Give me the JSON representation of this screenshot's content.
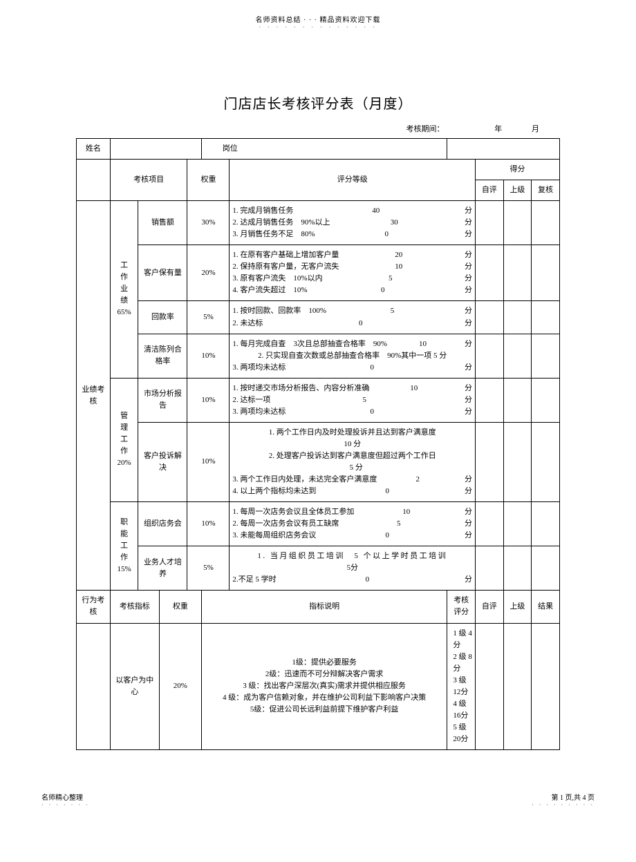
{
  "header": "名师资料总结 · · · 精品资料欢迎下载",
  "title": "门店店长考核评分表（月度）",
  "period_label": "考核期间：",
  "period_year": "年",
  "period_month": "月",
  "name_label": "姓名",
  "position_label": "岗位",
  "col": {
    "item": "考核项目",
    "weight": "权重",
    "grading": "评分等级",
    "score": "得分",
    "self": "自评",
    "superior": "上级",
    "review": "复核"
  },
  "perf_label": "业绩考核",
  "behavior_label": "行为考核",
  "sections": [
    {
      "cat": [
        "工",
        "作",
        "业",
        "绩",
        "65%"
      ],
      "rows": [
        {
          "name": "销售额",
          "weight": "30%",
          "lines": [
            {
              "t": "1. 完成月销售任务",
              "n": "40",
              "f": "分"
            },
            {
              "t": "2. 达成月销售任务　90%以上",
              "n": "30",
              "f": "分"
            },
            {
              "t": "3. 月销售任务不足　80%",
              "n": "0",
              "f": "分"
            }
          ]
        },
        {
          "name": "客户保有量",
          "weight": "20%",
          "lines": [
            {
              "t": "1. 在原有客户基础上增加客户量",
              "n": "20",
              "f": "分"
            },
            {
              "t": "2. 保持原有客户量，无客户流失",
              "n": "10",
              "f": "分"
            },
            {
              "t": "3. 原有客户流失　10%以内",
              "n": "5",
              "f": "分"
            },
            {
              "t": "4. 客户流失超过　10%",
              "n": "0",
              "f": "分"
            }
          ]
        },
        {
          "name": "回款率",
          "weight": "5%",
          "lines": [
            {
              "t": "1. 按时回款、回款率　100%",
              "n": "5",
              "f": "分"
            },
            {
              "t": "2. 未达标",
              "n": "0",
              "f": "分"
            }
          ]
        },
        {
          "name": "清洁陈列合格率",
          "weight": "10%",
          "lines": [
            {
              "t": "1. 每月完成自查　3次且总部抽查合格率　90%",
              "n": "10",
              "f": "分"
            },
            {
              "t": "2. 只实现自查次数或总部抽查合格率　90%其中一项",
              "n": "5",
              "f": "分",
              "inline": true
            },
            {
              "t": "3. 两项均未达标",
              "n": "0",
              "f": "分"
            }
          ]
        }
      ]
    },
    {
      "cat": [
        "管",
        "理",
        "工",
        "作",
        "20%"
      ],
      "rows": [
        {
          "name": "市场分析报告",
          "weight": "10%",
          "lines": [
            {
              "t": "1. 按时递交市场分析报告、内容分析准确",
              "n": "10",
              "f": "分"
            },
            {
              "t": "2. 达标一项",
              "n": "5",
              "f": "分"
            },
            {
              "t": "3. 两项均未达标",
              "n": "0",
              "f": "分"
            }
          ]
        },
        {
          "name": "客户投诉解决",
          "weight": "10%",
          "lines": [
            {
              "t": "1. 两个工作日内及时处理投诉并且达到客户满意度",
              "n": "",
              "f": ""
            },
            {
              "t": "10 分",
              "n": "",
              "f": ""
            },
            {
              "t": "2. 处理客户投诉达到客户满意度但超过两个工作日",
              "n": "",
              "f": ""
            },
            {
              "t": "　5 分",
              "n": "",
              "f": ""
            },
            {
              "t": "3. 两个工作日内处理，未达完全客户满意度",
              "n": "2",
              "f": "分"
            },
            {
              "t": "4. 以上两个指标均未达到",
              "n": "0",
              "f": "分"
            }
          ]
        }
      ]
    },
    {
      "cat": [
        "职",
        "能",
        "工",
        "作",
        "15%"
      ],
      "rows": [
        {
          "name": "组织店务会",
          "weight": "10%",
          "lines": [
            {
              "t": "1. 每周一次店务会议且全体员工参加",
              "n": "10",
              "f": "分"
            },
            {
              "t": "2. 每周一次店务会议有员工缺席",
              "n": "5",
              "f": "分"
            },
            {
              "t": "3. 未能每周组织店务会议",
              "n": "0",
              "f": "分"
            }
          ]
        },
        {
          "name": "业务人才培养",
          "weight": "5%",
          "lines": [
            {
              "t": "1. 当月组织员工培训　5 个以上学时员工培训",
              "n": "",
              "f": "",
              "spaced": true
            },
            {
              "t": "5分",
              "n": "",
              "f": ""
            },
            {
              "t": "2.不足 5 学时",
              "n": "0",
              "f": "分"
            }
          ]
        }
      ]
    }
  ],
  "behavior": {
    "h_indicator": "考核指标",
    "h_weight": "权重",
    "h_desc": "指标说明",
    "h_score": "考核评分",
    "h_self": "自评",
    "h_superior": "上级",
    "h_result": "结果",
    "row": {
      "name": "以客户为中心",
      "weight": "20%",
      "desc": [
        "1级：提供必要服务",
        "2级：迅速而不可分辩解决客户需求",
        "3 级：找出客户深层次(真实)需求并提供相应服务",
        "4 级：成为客户信赖对象，并在维护公司利益下影响客户决策",
        "5级：促进公司长远利益前提下维护客户利益"
      ],
      "score": [
        "1 级 4 分",
        "2 级 8 分",
        "3 级 12分",
        "4 级 16分",
        "5 级 20分"
      ]
    }
  },
  "footer_left": "名师精心整理",
  "footer_right": "第 1 页,共 4 页"
}
